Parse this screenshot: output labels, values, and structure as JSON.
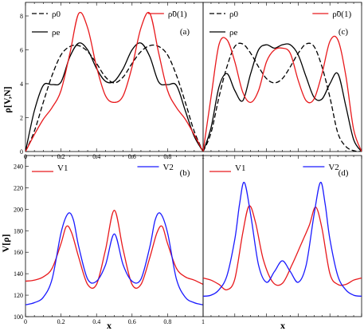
{
  "figure": {
    "ylabel_top": "ρ[V,N]",
    "ylabel_bottom": "V[ρ]",
    "xlabel_left": "x",
    "xlabel_right": "x"
  },
  "chart_data": [
    {
      "panel": "(a)",
      "type": "line",
      "xlim": [
        0,
        1
      ],
      "ylim": [
        0,
        8.8
      ],
      "xticks": [
        "0",
        "0.2",
        "0.4",
        "0.6",
        "0.8",
        "1"
      ],
      "yticks": [
        "0",
        "2",
        "4",
        "6",
        "8"
      ],
      "grid": false,
      "legend": [
        "top-left",
        "top-right"
      ],
      "series": [
        {
          "name": "ρ0",
          "style": "dashed",
          "color": "#000000",
          "x": [
            0,
            0.05,
            0.1,
            0.15,
            0.2,
            0.25,
            0.3,
            0.35,
            0.4,
            0.45,
            0.5,
            0.55,
            0.6,
            0.65,
            0.7,
            0.75,
            0.8,
            0.85,
            0.9,
            0.95,
            1
          ],
          "y": [
            0,
            1.2,
            2.9,
            4.5,
            5.7,
            6.2,
            6.25,
            5.9,
            5.2,
            4.4,
            4.05,
            4.4,
            5.2,
            5.9,
            6.25,
            6.2,
            5.7,
            4.5,
            2.9,
            1.2,
            0
          ]
        },
        {
          "name": "ρe",
          "style": "solid",
          "color": "#000000",
          "x": [
            0,
            0.05,
            0.1,
            0.15,
            0.2,
            0.25,
            0.3,
            0.35,
            0.4,
            0.45,
            0.5,
            0.55,
            0.6,
            0.65,
            0.7,
            0.75,
            0.8,
            0.85,
            0.9,
            0.95,
            1
          ],
          "y": [
            0,
            2.4,
            3.9,
            3.95,
            4.1,
            5.6,
            6.4,
            6.0,
            4.9,
            4.15,
            4.15,
            4.9,
            6.0,
            6.4,
            5.6,
            4.1,
            3.95,
            3.9,
            2.4,
            0.9,
            0
          ]
        },
        {
          "name": "ρ̃0(1)",
          "style": "solid",
          "color": "#e8191c",
          "x": [
            0,
            0.05,
            0.1,
            0.15,
            0.2,
            0.25,
            0.3,
            0.35,
            0.4,
            0.45,
            0.5,
            0.55,
            0.6,
            0.65,
            0.7,
            0.75,
            0.8,
            0.85,
            0.9,
            0.95,
            1
          ],
          "y": [
            0,
            1.0,
            1.9,
            2.6,
            3.6,
            5.8,
            8.15,
            7.3,
            5.0,
            3.3,
            2.9,
            3.3,
            5.0,
            7.3,
            8.15,
            5.8,
            3.6,
            2.6,
            1.9,
            1.0,
            0
          ]
        }
      ]
    },
    {
      "panel": "(c)",
      "type": "line",
      "xlim": [
        0,
        1
      ],
      "ylim": [
        0,
        8.8
      ],
      "xticks": [],
      "yticks": [],
      "grid": false,
      "legend": [
        "top-left",
        "top-right"
      ],
      "series": [
        {
          "name": "ρ0",
          "style": "dashed",
          "color": "#000000",
          "x": [
            0,
            0.05,
            0.1,
            0.15,
            0.2,
            0.25,
            0.3,
            0.35,
            0.4,
            0.45,
            0.5,
            0.55,
            0.6,
            0.65,
            0.7,
            0.75,
            0.8,
            0.85,
            0.9,
            0.95,
            1
          ],
          "y": [
            0,
            1.1,
            3.2,
            5.0,
            6.2,
            6.35,
            5.8,
            5.0,
            4.3,
            4.05,
            4.3,
            5.0,
            5.8,
            6.35,
            6.2,
            5.0,
            3.2,
            1.1,
            0.3,
            0.05,
            0
          ]
        },
        {
          "name": "ρe",
          "style": "solid",
          "color": "#000000",
          "x": [
            0,
            0.05,
            0.1,
            0.15,
            0.2,
            0.25,
            0.3,
            0.35,
            0.4,
            0.45,
            0.5,
            0.55,
            0.6,
            0.65,
            0.7,
            0.75,
            0.8,
            0.85,
            0.9,
            0.95,
            1
          ],
          "y": [
            0,
            1.4,
            3.8,
            4.6,
            3.6,
            3.0,
            4.6,
            6.0,
            6.3,
            6.1,
            6.3,
            6.3,
            5.7,
            4.4,
            3.2,
            3.1,
            4.0,
            4.6,
            2.7,
            0.7,
            0
          ]
        },
        {
          "name": "ρ̃0(1)",
          "style": "solid",
          "color": "#e8191c",
          "x": [
            0,
            0.05,
            0.1,
            0.15,
            0.2,
            0.25,
            0.3,
            0.35,
            0.4,
            0.45,
            0.5,
            0.55,
            0.6,
            0.65,
            0.7,
            0.75,
            0.8,
            0.85,
            0.9,
            0.95,
            1
          ],
          "y": [
            0,
            3.2,
            6.3,
            6.6,
            5.3,
            3.5,
            2.9,
            3.6,
            5.3,
            6.0,
            6.1,
            5.8,
            4.2,
            3.0,
            3.1,
            4.6,
            6.5,
            6.6,
            4.5,
            1.3,
            0
          ]
        }
      ]
    },
    {
      "panel": "(b)",
      "type": "line",
      "xlim": [
        0,
        1
      ],
      "ylim": [
        100,
        250
      ],
      "xticks": [
        "0",
        "0.2",
        "0.4",
        "0.6",
        "0.8",
        "1"
      ],
      "yticks": [
        "100",
        "120",
        "140",
        "160",
        "180",
        "200",
        "220",
        "240"
      ],
      "grid": false,
      "legend": [
        "top-left",
        "top-right"
      ],
      "series": [
        {
          "name": "V1",
          "style": "solid",
          "color": "#e8191c",
          "x": [
            0,
            0.05,
            0.1,
            0.15,
            0.2,
            0.23,
            0.26,
            0.3,
            0.35,
            0.4,
            0.45,
            0.5,
            0.55,
            0.6,
            0.65,
            0.7,
            0.74,
            0.77,
            0.8,
            0.85,
            0.9,
            0.95,
            1
          ],
          "y": [
            133,
            134,
            137,
            145,
            168,
            184,
            178,
            155,
            130,
            130,
            162,
            199,
            162,
            130,
            130,
            155,
            178,
            184,
            168,
            145,
            137,
            134,
            130
          ]
        },
        {
          "name": "V2",
          "style": "solid",
          "color": "#1a1aff",
          "x": [
            0,
            0.05,
            0.1,
            0.15,
            0.2,
            0.24,
            0.27,
            0.3,
            0.35,
            0.4,
            0.45,
            0.5,
            0.55,
            0.6,
            0.65,
            0.7,
            0.73,
            0.76,
            0.8,
            0.85,
            0.9,
            0.95,
            1
          ],
          "y": [
            111,
            113,
            118,
            135,
            178,
            196,
            190,
            165,
            135,
            133,
            148,
            177,
            148,
            133,
            135,
            165,
            190,
            196,
            178,
            135,
            118,
            113,
            111
          ]
        }
      ]
    },
    {
      "panel": "(d)",
      "type": "line",
      "xlim": [
        0,
        1
      ],
      "ylim": [
        100,
        250
      ],
      "xticks": [],
      "yticks": [],
      "grid": false,
      "legend": [
        "top-left",
        "top-right"
      ],
      "series": [
        {
          "name": "V1",
          "style": "solid",
          "color": "#e8191c",
          "x": [
            0,
            0.05,
            0.1,
            0.15,
            0.2,
            0.25,
            0.29,
            0.33,
            0.38,
            0.44,
            0.5,
            0.56,
            0.62,
            0.67,
            0.71,
            0.75,
            0.8,
            0.85,
            0.9,
            0.95,
            1
          ],
          "y": [
            136,
            134,
            130,
            125,
            135,
            178,
            203,
            188,
            153,
            132,
            131,
            148,
            168,
            185,
            202,
            182,
            140,
            130,
            130,
            134,
            136
          ]
        },
        {
          "name": "V2",
          "style": "solid",
          "color": "#1a1aff",
          "x": [
            0,
            0.05,
            0.1,
            0.15,
            0.2,
            0.23,
            0.26,
            0.3,
            0.35,
            0.4,
            0.45,
            0.5,
            0.55,
            0.6,
            0.65,
            0.7,
            0.74,
            0.77,
            0.8,
            0.85,
            0.9,
            0.95,
            1
          ],
          "y": [
            119,
            120,
            125,
            138,
            172,
            205,
            225,
            195,
            148,
            132,
            142,
            152,
            142,
            132,
            148,
            195,
            225,
            205,
            172,
            138,
            125,
            120,
            119
          ]
        }
      ]
    }
  ]
}
